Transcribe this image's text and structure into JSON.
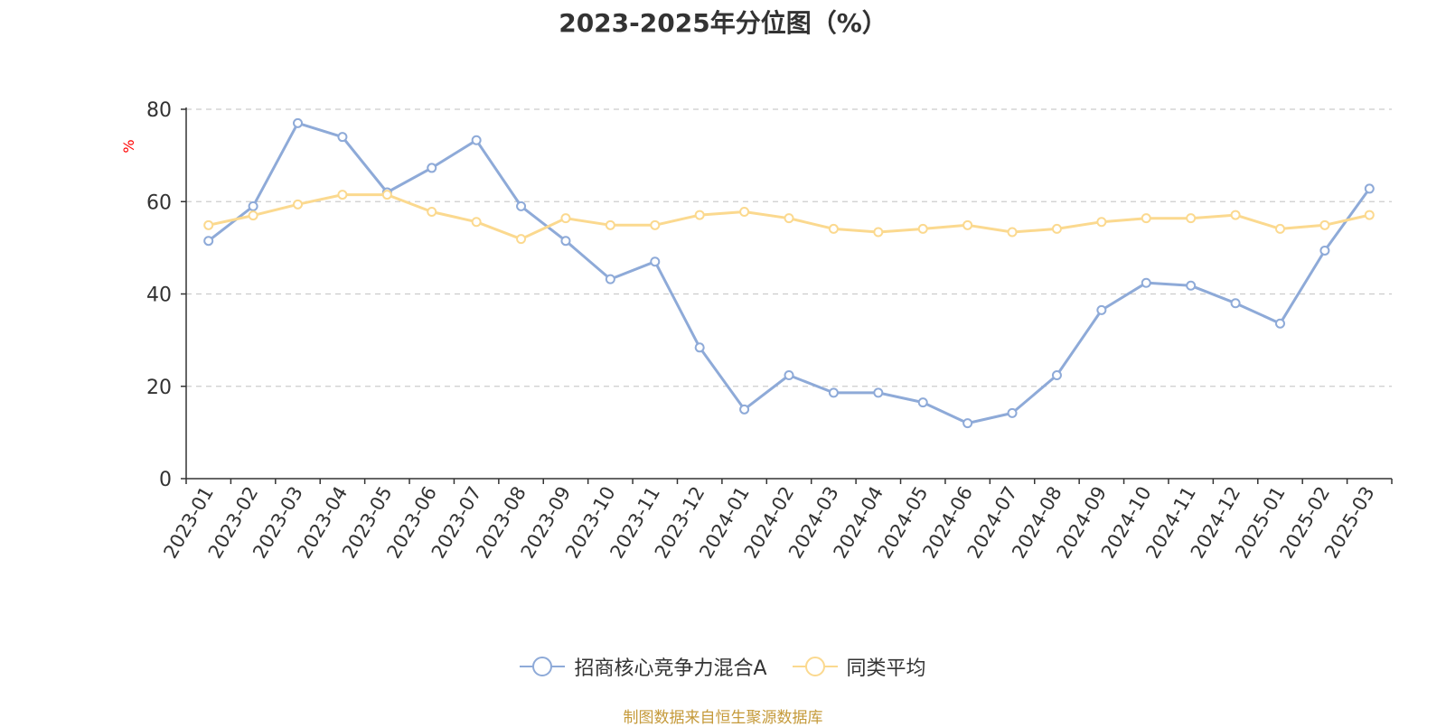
{
  "title": "2023-2025年分位图（%）",
  "source_note": "制图数据来自恒生聚源数据库",
  "chart_data": {
    "type": "line",
    "ylabel": "%",
    "ylim": [
      0,
      80
    ],
    "yticks": [
      0,
      20,
      40,
      60,
      80
    ],
    "grid": true,
    "legend_position": "bottom",
    "categories": [
      "2023-01",
      "2023-02",
      "2023-03",
      "2023-04",
      "2023-05",
      "2023-06",
      "2023-07",
      "2023-08",
      "2023-09",
      "2023-10",
      "2023-11",
      "2023-12",
      "2024-01",
      "2024-02",
      "2024-03",
      "2024-04",
      "2024-05",
      "2024-06",
      "2024-07",
      "2024-08",
      "2024-09",
      "2024-10",
      "2024-11",
      "2024-12",
      "2025-01",
      "2025-02",
      "2025-03"
    ],
    "series": [
      {
        "name": "招商核心竞争力混合A",
        "color": "#8eaad8",
        "values": [
          51.5,
          59,
          77,
          74,
          62,
          67.3,
          73.3,
          59,
          51.5,
          43.2,
          47,
          28.4,
          15,
          22.4,
          18.6,
          18.6,
          16.5,
          12,
          14.2,
          22.4,
          36.5,
          42.4,
          41.8,
          38,
          33.6,
          49.4,
          62.8
        ]
      },
      {
        "name": "同类平均",
        "color": "#fbd98f",
        "values": [
          54.9,
          57,
          59.4,
          61.5,
          61.5,
          57.8,
          55.6,
          51.9,
          56.4,
          54.9,
          54.9,
          57.1,
          57.8,
          56.4,
          54.1,
          53.4,
          54.1,
          54.9,
          53.4,
          54.1,
          55.6,
          56.4,
          56.4,
          57.1,
          54.1,
          54.9,
          57.1
        ]
      }
    ]
  }
}
